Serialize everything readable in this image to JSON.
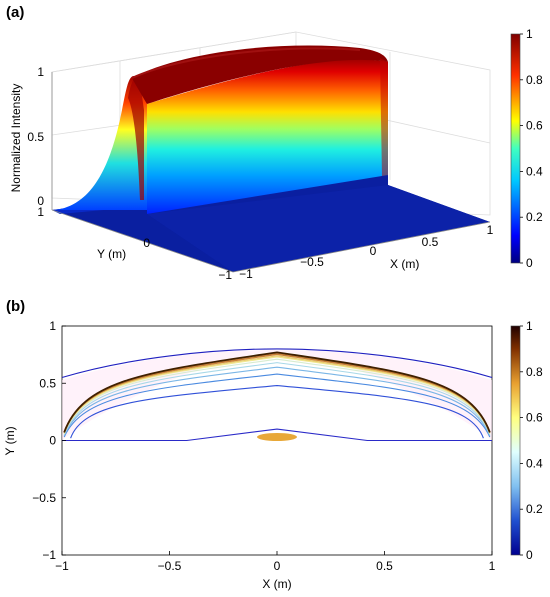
{
  "panels": {
    "a": {
      "label": "(a)"
    },
    "b": {
      "label": "(b)"
    }
  },
  "chart_data": [
    {
      "panel": "(a)",
      "type": "area",
      "subtype": "3d-surface",
      "title": "",
      "xlabel": "X (m)",
      "ylabel": "Y (m)",
      "zlabel": "Normalized Intensity",
      "xlim": [
        -1,
        1
      ],
      "ylim": [
        -1,
        1
      ],
      "zlim": [
        0,
        1
      ],
      "xticks": [
        "−1",
        "−0.5",
        "0",
        "0.5",
        "1"
      ],
      "yticks": [
        "−1",
        "0",
        "1"
      ],
      "zticks": [
        "0",
        "0.5",
        "1"
      ],
      "surface_profile": {
        "y": [
          0,
          0.2,
          0.4,
          0.6,
          0.8,
          0.9,
          1.0
        ],
        "intensity": [
          1.0,
          0.98,
          0.93,
          0.84,
          0.65,
          0.45,
          0.0
        ]
      },
      "colormap": "jet",
      "colorbar": {
        "min": 0,
        "max": 1,
        "ticks": [
          "0",
          "0.2",
          "0.4",
          "0.6",
          "0.8",
          "1"
        ]
      },
      "grid": true
    },
    {
      "panel": "(b)",
      "type": "line",
      "subtype": "contour",
      "title": "",
      "xlabel": "X (m)",
      "ylabel": "Y (m)",
      "xlim": [
        -1,
        1
      ],
      "ylim": [
        -1,
        1
      ],
      "xticks": [
        "−1",
        "−0.5",
        "0",
        "0.5",
        "1"
      ],
      "yticks": [
        "−1",
        "−0.5",
        "0",
        "0.5",
        "1"
      ],
      "source_marker": {
        "x": 0,
        "y": 0.02,
        "shape": "ellipse",
        "color": "#e8a838"
      },
      "series": [
        {
          "level": 0.05,
          "color": "#2a2ac8",
          "peak_y": 0.1,
          "x_flat": 0.42,
          "edge_y": 0
        },
        {
          "level": 0.1,
          "color": "#3050d8",
          "peak_y": 0.48,
          "x_flat": 0.96,
          "edge_y": 0.02
        },
        {
          "level": 0.2,
          "color": "#4a8ae0",
          "peak_y": 0.58,
          "x_flat": 0.99,
          "edge_y": 0.03
        },
        {
          "level": 0.3,
          "color": "#7ab6e6",
          "peak_y": 0.64,
          "x_flat": 0.99,
          "edge_y": 0.04
        },
        {
          "level": 0.4,
          "color": "#a8d8e8",
          "peak_y": 0.68,
          "x_flat": 0.99,
          "edge_y": 0.05
        },
        {
          "level": 0.5,
          "color": "#d8ecd0",
          "peak_y": 0.71,
          "x_flat": 0.99,
          "edge_y": 0.06
        },
        {
          "level": 0.6,
          "color": "#f0e890",
          "peak_y": 0.73,
          "x_flat": 0.99,
          "edge_y": 0.06
        },
        {
          "level": 0.7,
          "color": "#e8c868",
          "peak_y": 0.74,
          "x_flat": 0.99,
          "edge_y": 0.07
        },
        {
          "level": 0.8,
          "color": "#c88038",
          "peak_y": 0.755,
          "x_flat": 0.99,
          "edge_y": 0.07
        },
        {
          "level": 0.9,
          "color": "#402000",
          "peak_y": 0.77,
          "x_flat": 0.99,
          "edge_y": 0.07
        },
        {
          "level": 0.02,
          "color": "#2020c0",
          "peak_y": 0.8,
          "x_flat": 1.0,
          "edge_y": 0.55
        }
      ],
      "colormap": "pink-yellow-cyan-blue",
      "colorbar": {
        "min": 0,
        "max": 1,
        "ticks": [
          "0",
          "0.2",
          "0.4",
          "0.6",
          "0.8",
          "1"
        ]
      },
      "grid": false
    }
  ]
}
